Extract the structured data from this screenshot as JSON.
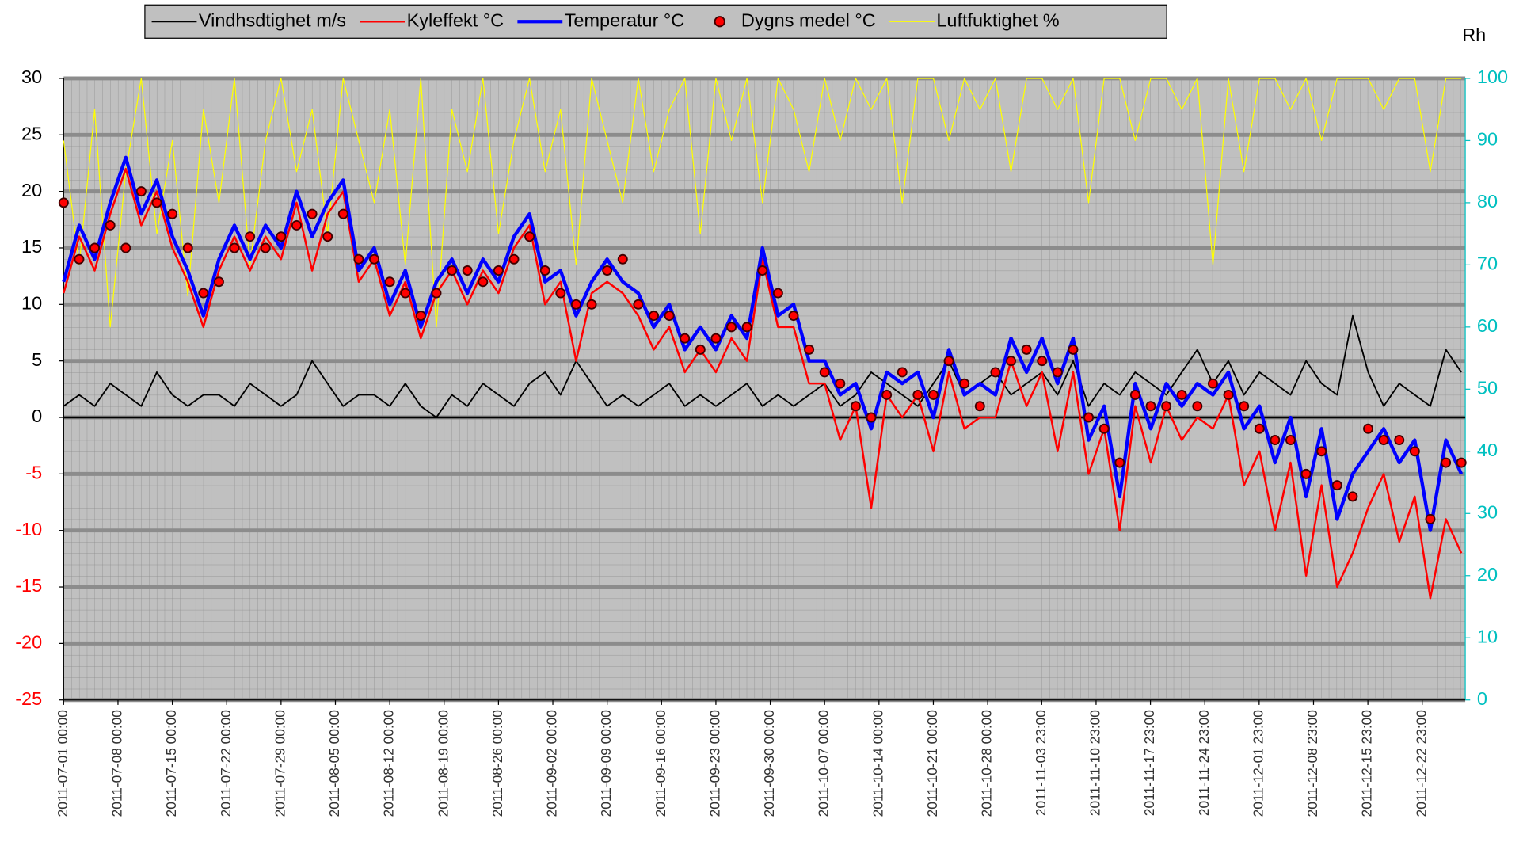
{
  "chart_data": {
    "type": "line",
    "y2label": "Rh",
    "negative_tick_color": "#ff0000",
    "y2_color": "#00c0c0",
    "grid": true,
    "legend_position": "top",
    "x": [
      "2011-07-01 00:00",
      "2011-07-03 00:00",
      "2011-07-05 00:00",
      "2011-07-07 00:00",
      "2011-07-09 00:00",
      "2011-07-11 00:00",
      "2011-07-13 00:00",
      "2011-07-15 00:00",
      "2011-07-17 00:00",
      "2011-07-19 00:00",
      "2011-07-21 00:00",
      "2011-07-23 00:00",
      "2011-07-25 00:00",
      "2011-07-27 00:00",
      "2011-07-29 00:00",
      "2011-07-31 00:00",
      "2011-08-02 00:00",
      "2011-08-04 00:00",
      "2011-08-06 00:00",
      "2011-08-08 00:00",
      "2011-08-10 00:00",
      "2011-08-12 00:00",
      "2011-08-14 00:00",
      "2011-08-16 00:00",
      "2011-08-18 00:00",
      "2011-08-20 00:00",
      "2011-08-22 00:00",
      "2011-08-24 00:00",
      "2011-08-26 00:00",
      "2011-08-28 00:00",
      "2011-08-30 00:00",
      "2011-09-01 00:00",
      "2011-09-03 00:00",
      "2011-09-05 00:00",
      "2011-09-07 00:00",
      "2011-09-09 00:00",
      "2011-09-11 00:00",
      "2011-09-13 00:00",
      "2011-09-15 00:00",
      "2011-09-17 00:00",
      "2011-09-19 00:00",
      "2011-09-21 00:00",
      "2011-09-23 00:00",
      "2011-09-25 00:00",
      "2011-09-27 00:00",
      "2011-09-29 00:00",
      "2011-10-01 00:00",
      "2011-10-03 00:00",
      "2011-10-05 00:00",
      "2011-10-07 00:00",
      "2011-10-09 00:00",
      "2011-10-11 00:00",
      "2011-10-13 00:00",
      "2011-10-15 00:00",
      "2011-10-17 00:00",
      "2011-10-19 00:00",
      "2011-10-21 00:00",
      "2011-10-23 00:00",
      "2011-10-25 00:00",
      "2011-10-27 00:00",
      "2011-10-29 00:00",
      "2011-10-31 00:00",
      "2011-11-02 00:00",
      "2011-11-04 00:00",
      "2011-11-06 00:00",
      "2011-11-08 00:00",
      "2011-11-10 00:00",
      "2011-11-12 00:00",
      "2011-11-14 00:00",
      "2011-11-16 00:00",
      "2011-11-18 00:00",
      "2011-11-20 00:00",
      "2011-11-22 00:00",
      "2011-11-24 00:00",
      "2011-11-26 00:00",
      "2011-11-28 00:00",
      "2011-11-30 00:00",
      "2011-12-02 00:00",
      "2011-12-04 00:00",
      "2011-12-06 00:00",
      "2011-12-08 00:00",
      "2011-12-10 00:00",
      "2011-12-12 00:00",
      "2011-12-14 00:00",
      "2011-12-16 00:00",
      "2011-12-18 00:00",
      "2011-12-20 00:00",
      "2011-12-22 00:00",
      "2011-12-24 00:00",
      "2011-12-26 00:00",
      "2011-12-28 00:00"
    ],
    "xlim": [
      "2011-07-01 00:00",
      "2011-12-28 12:00"
    ],
    "xticks": [
      "2011-07-01 00:00",
      "2011-07-08 00:00",
      "2011-07-15 00:00",
      "2011-07-22 00:00",
      "2011-07-29 00:00",
      "2011-08-05 00:00",
      "2011-08-12 00:00",
      "2011-08-19 00:00",
      "2011-08-26 00:00",
      "2011-09-02 00:00",
      "2011-09-09 00:00",
      "2011-09-16 00:00",
      "2011-09-23 00:00",
      "2011-09-30 00:00",
      "2011-10-07 00:00",
      "2011-10-14 00:00",
      "2011-10-21 00:00",
      "2011-10-28 00:00",
      "2011-11-03 23:00",
      "2011-11-10 23:00",
      "2011-11-17 23:00",
      "2011-11-24 23:00",
      "2011-12-01 23:00",
      "2011-12-08 23:00",
      "2011-12-15 23:00",
      "2011-12-22 23:00"
    ],
    "ylim": [
      -25,
      30
    ],
    "yticks": [
      -25,
      -20,
      -15,
      -10,
      -5,
      0,
      5,
      10,
      15,
      20,
      25,
      30
    ],
    "y2lim": [
      0,
      100
    ],
    "y2ticks": [
      0,
      10,
      20,
      30,
      40,
      50,
      60,
      70,
      80,
      90,
      100
    ],
    "series": [
      {
        "name": "Vindhsdtighet m/s",
        "color": "#000000",
        "width": 1.5,
        "values": [
          1,
          2,
          1,
          3,
          2,
          1,
          4,
          2,
          1,
          2,
          2,
          1,
          3,
          2,
          1,
          2,
          5,
          3,
          1,
          2,
          2,
          1,
          3,
          1,
          0,
          2,
          1,
          3,
          2,
          1,
          3,
          4,
          2,
          5,
          3,
          1,
          2,
          1,
          2,
          3,
          1,
          2,
          1,
          2,
          3,
          1,
          2,
          1,
          2,
          3,
          1,
          2,
          4,
          3,
          2,
          1,
          3,
          5,
          2,
          3,
          4,
          2,
          3,
          4,
          2,
          5,
          1,
          3,
          2,
          4,
          3,
          2,
          4,
          6,
          3,
          5,
          2,
          4,
          3,
          2,
          5,
          3,
          2,
          9,
          4,
          1,
          3,
          2,
          1,
          6,
          4
        ]
      },
      {
        "name": "Kyleffekt °C",
        "color": "#ff0000",
        "width": 2,
        "values": [
          11,
          16,
          13,
          18,
          22,
          17,
          20,
          15,
          12,
          8,
          13,
          16,
          13,
          16,
          14,
          19,
          13,
          18,
          20,
          12,
          14,
          9,
          12,
          7,
          11,
          13,
          10,
          13,
          11,
          15,
          17,
          10,
          12,
          5,
          11,
          12,
          11,
          9,
          6,
          8,
          4,
          6,
          4,
          7,
          5,
          14,
          8,
          8,
          3,
          3,
          -2,
          1,
          -8,
          2,
          0,
          2,
          -3,
          4,
          -1,
          0,
          0,
          5,
          1,
          4,
          -3,
          4,
          -5,
          -1,
          -10,
          1,
          -4,
          1,
          -2,
          0,
          -1,
          2,
          -6,
          -3,
          -10,
          -4,
          -14,
          -6,
          -15,
          -12,
          -8,
          -5,
          -11,
          -7,
          -16,
          -9,
          -12
        ]
      },
      {
        "name": "Temperatur °C",
        "color": "#0000ff",
        "width": 3.5,
        "values": [
          12,
          17,
          14,
          19,
          23,
          18,
          21,
          16,
          13,
          9,
          14,
          17,
          14,
          17,
          15,
          20,
          16,
          19,
          21,
          13,
          15,
          10,
          13,
          8,
          12,
          14,
          11,
          14,
          12,
          16,
          18,
          12,
          13,
          9,
          12,
          14,
          12,
          11,
          8,
          10,
          6,
          8,
          6,
          9,
          7,
          15,
          9,
          10,
          5,
          5,
          2,
          3,
          -1,
          4,
          3,
          4,
          0,
          6,
          2,
          3,
          2,
          7,
          4,
          7,
          3,
          7,
          -2,
          1,
          -7,
          3,
          -1,
          3,
          1,
          3,
          2,
          4,
          -1,
          1,
          -4,
          0,
          -7,
          -1,
          -9,
          -5,
          -3,
          -1,
          -4,
          -2,
          -10,
          -2,
          -5
        ]
      },
      {
        "name": "Dygns medel °C",
        "color": "#ff0000",
        "markers": true,
        "values": [
          19,
          14,
          15,
          17,
          15,
          20,
          19,
          18,
          15,
          11,
          12,
          15,
          16,
          15,
          16,
          17,
          18,
          16,
          18,
          14,
          14,
          12,
          11,
          9,
          11,
          13,
          13,
          12,
          13,
          14,
          16,
          13,
          11,
          10,
          10,
          13,
          14,
          10,
          9,
          9,
          7,
          6,
          7,
          8,
          8,
          13,
          11,
          9,
          6,
          4,
          3,
          1,
          0,
          2,
          4,
          2,
          2,
          5,
          3,
          1,
          4,
          5,
          6,
          5,
          4,
          6,
          0,
          -1,
          -4,
          2,
          1,
          1,
          2,
          1,
          3,
          2,
          1,
          -1,
          -2,
          -2,
          -5,
          -3,
          -6,
          -7,
          -1,
          -2,
          -2,
          -3,
          -9,
          -4,
          -4
        ]
      },
      {
        "name": "Luftfuktighet %",
        "color": "#ffff00",
        "width": 1,
        "axis": "y2",
        "values": [
          90,
          70,
          95,
          60,
          85,
          100,
          75,
          90,
          65,
          95,
          80,
          100,
          70,
          90,
          100,
          85,
          95,
          75,
          100,
          90,
          80,
          95,
          70,
          100,
          60,
          95,
          85,
          100,
          75,
          90,
          100,
          85,
          95,
          70,
          100,
          90,
          80,
          100,
          85,
          95,
          100,
          75,
          100,
          90,
          100,
          80,
          100,
          95,
          85,
          100,
          90,
          100,
          95,
          100,
          80,
          100,
          100,
          90,
          100,
          95,
          100,
          85,
          100,
          100,
          95,
          100,
          80,
          100,
          100,
          90,
          100,
          100,
          95,
          100,
          70,
          100,
          85,
          100,
          100,
          95,
          100,
          90,
          100,
          100,
          100,
          95,
          100,
          100,
          85,
          100,
          100
        ]
      }
    ]
  }
}
